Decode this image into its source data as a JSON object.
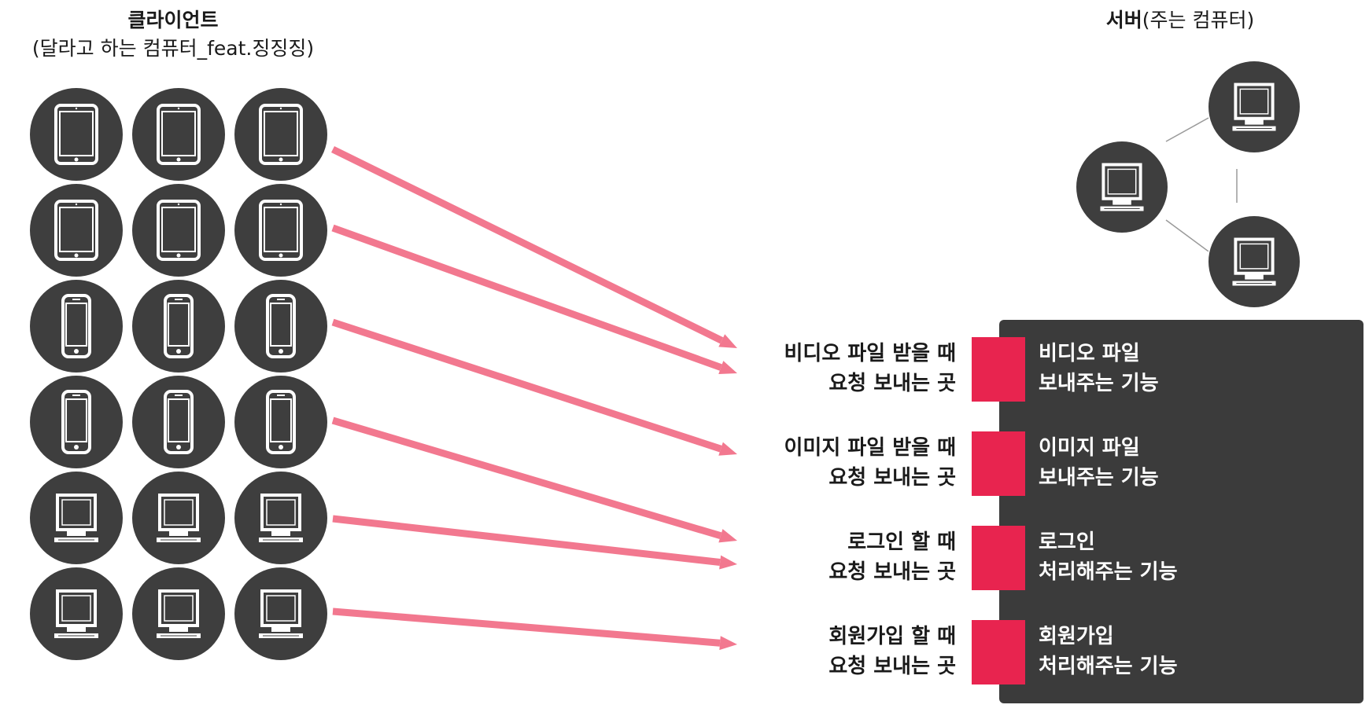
{
  "client": {
    "title": "클라이언트",
    "subtitle": "(달라고 하는 컴퓨터_feat.징징징)",
    "rows": [
      {
        "device": "tablet-icon"
      },
      {
        "device": "tablet-icon"
      },
      {
        "device": "smartphone-icon"
      },
      {
        "device": "smartphone-icon"
      },
      {
        "device": "desktop-icon"
      },
      {
        "device": "desktop-icon"
      }
    ]
  },
  "server": {
    "title_bold": "서버",
    "title_rest": "(주는 컴퓨터)",
    "node_icon": "desktop-icon"
  },
  "endpoints": [
    {
      "line1": "비디오 파일 받을 때",
      "line2": "요청 보내는 곳",
      "func1": "비디오 파일",
      "func2": "보내주는 기능"
    },
    {
      "line1": "이미지 파일 받을 때",
      "line2": "요청 보내는 곳",
      "func1": "이미지 파일",
      "func2": "보내주는 기능"
    },
    {
      "line1": "로그인 할 때",
      "line2": "요청 보내는 곳",
      "func1": "로그인",
      "func2": "처리해주는 기능"
    },
    {
      "line1": "회원가입 할 때",
      "line2": "요청 보내는 곳",
      "func1": "회원가입",
      "func2": "처리해주는 기능"
    }
  ],
  "colors": {
    "device_bg": "#3e3e3e",
    "panel_bg": "#3b3b3b",
    "port": "#e8244f",
    "arrow": "#f2788f",
    "connector": "#9a9a9a"
  }
}
